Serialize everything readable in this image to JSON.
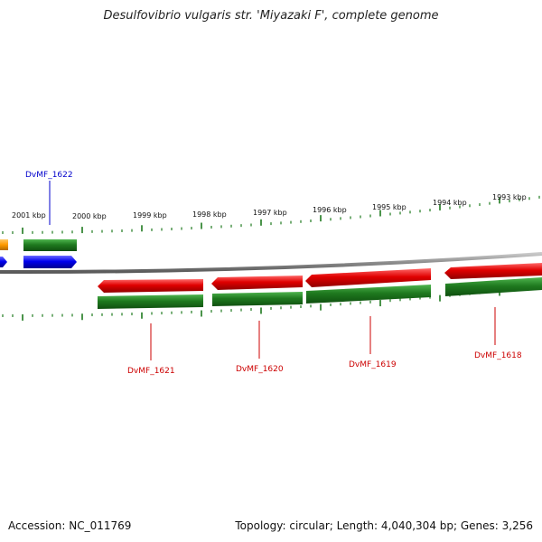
{
  "title": "Desulfovibrio vulgaris str. 'Miyazaki F', complete genome",
  "footer": {
    "accession": "Accession: NC_011769",
    "summary": "Topology: circular; Length: 4,040,304 bp; Genes: 3,256"
  },
  "colors": {
    "cds": "#1f7a1f",
    "forward_feature": "#0000ee",
    "reverse_feature": "#e00000",
    "other_feature": "#ff9900",
    "backbone": "#8a8a8a",
    "label_forward": "#0000cc",
    "label_reverse": "#cc0000",
    "ticks": "#1e7a1e"
  },
  "ticks": [
    {
      "label": "2001 kbp"
    },
    {
      "label": "2000 kbp"
    },
    {
      "label": "1999 kbp"
    },
    {
      "label": "1998 kbp"
    },
    {
      "label": "1997 kbp"
    },
    {
      "label": "1996 kbp"
    },
    {
      "label": "1995 kbp"
    },
    {
      "label": "1994 kbp"
    },
    {
      "label": "1993 kbp"
    }
  ],
  "genes": [
    {
      "name": "DvMF_1622",
      "strand": "forward"
    },
    {
      "name": "DvMF_1621",
      "strand": "reverse"
    },
    {
      "name": "DvMF_1620",
      "strand": "reverse"
    },
    {
      "name": "DvMF_1619",
      "strand": "reverse"
    },
    {
      "name": "DvMF_1618",
      "strand": "reverse"
    }
  ]
}
